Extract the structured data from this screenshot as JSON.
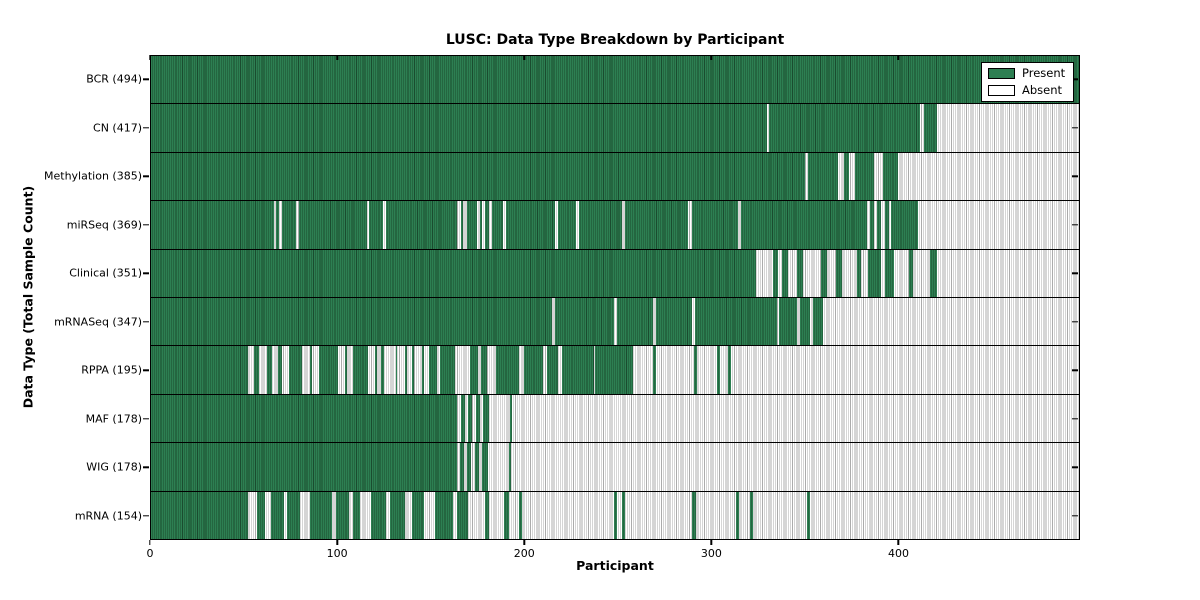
{
  "chart_data": {
    "type": "heatmap",
    "title": "LUSC: Data Type Breakdown by Participant",
    "xlabel": "Participant",
    "ylabel": "Data Type (Total Sample Count)",
    "x_ticks": [
      0,
      100,
      200,
      300,
      400
    ],
    "x_range": [
      0,
      497
    ],
    "grid": false,
    "legend_position": "upper right",
    "legend": [
      {
        "label": "Present",
        "color": "#2d7f52"
      },
      {
        "label": "Absent",
        "color": "#ffffff"
      }
    ],
    "cell_states": {
      "present": 1,
      "absent": 0
    },
    "rows": [
      {
        "label": "BCR (494)",
        "data_type": "BCR",
        "total": 494,
        "present_runs": [
          [
            0,
            497
          ]
        ]
      },
      {
        "label": "CN (417)",
        "data_type": "CN",
        "total": 417,
        "present_runs": [
          [
            0,
            330
          ],
          [
            331,
            412
          ],
          [
            414,
            421
          ]
        ]
      },
      {
        "label": "Methylation (385)",
        "data_type": "Methylation",
        "total": 385,
        "present_runs": [
          [
            0,
            350
          ],
          [
            352,
            368
          ],
          [
            371,
            374
          ],
          [
            377,
            387
          ],
          [
            392,
            400
          ]
        ]
      },
      {
        "label": "miRSeq (369)",
        "data_type": "miRSeq",
        "total": 369,
        "present_runs": [
          [
            0,
            66
          ],
          [
            67,
            68.5
          ],
          [
            70,
            77.5
          ],
          [
            79,
            115.5
          ],
          [
            117,
            124.5
          ],
          [
            126,
            164
          ],
          [
            166,
            167
          ],
          [
            169,
            174.5
          ],
          [
            176,
            177.5
          ],
          [
            179,
            181
          ],
          [
            182.5,
            188.5
          ],
          [
            190,
            216.5
          ],
          [
            218,
            227.5
          ],
          [
            229,
            252.5
          ],
          [
            254,
            287.5
          ],
          [
            289.5,
            314.5
          ],
          [
            316,
            383.5
          ],
          [
            385,
            387
          ],
          [
            389,
            391
          ],
          [
            393,
            395
          ],
          [
            396.5,
            411
          ]
        ]
      },
      {
        "label": "Clinical (351)",
        "data_type": "Clinical",
        "total": 351,
        "present_runs": [
          [
            0,
            324
          ],
          [
            333,
            336
          ],
          [
            338,
            341
          ],
          [
            346,
            349
          ],
          [
            359,
            362
          ],
          [
            367,
            370
          ],
          [
            378,
            380
          ],
          [
            384,
            391
          ],
          [
            393,
            398
          ],
          [
            406,
            408
          ],
          [
            417,
            421
          ]
        ]
      },
      {
        "label": "mRNASeq (347)",
        "data_type": "mRNASeq",
        "total": 347,
        "present_runs": [
          [
            0,
            215
          ],
          [
            216.5,
            248
          ],
          [
            249.5,
            269
          ],
          [
            270.5,
            290
          ],
          [
            291.5,
            335
          ],
          [
            336.5,
            346
          ],
          [
            347.5,
            353
          ],
          [
            354.5,
            360
          ]
        ]
      },
      {
        "label": "RPPA (195)",
        "data_type": "RPPA",
        "total": 195,
        "present_runs": [
          [
            0,
            52
          ],
          [
            55,
            58
          ],
          [
            62,
            65
          ],
          [
            68,
            70
          ],
          [
            74,
            81
          ],
          [
            85,
            86
          ],
          [
            90,
            100
          ],
          [
            104,
            105
          ],
          [
            108,
            116
          ],
          [
            120,
            121
          ],
          [
            123,
            125
          ],
          [
            131,
            132
          ],
          [
            136,
            137
          ],
          [
            140,
            141
          ],
          [
            145,
            146
          ],
          [
            149,
            153
          ],
          [
            155,
            163
          ],
          [
            171,
            175
          ],
          [
            177,
            180
          ],
          [
            185,
            197
          ],
          [
            200,
            210
          ],
          [
            212,
            218
          ],
          [
            220,
            237
          ],
          [
            238,
            258
          ],
          [
            269,
            270.5
          ],
          [
            291,
            292.5
          ],
          [
            303,
            304.5
          ],
          [
            309,
            310.5
          ]
        ]
      },
      {
        "label": "MAF (178)",
        "data_type": "MAF",
        "total": 178,
        "present_runs": [
          [
            0,
            164
          ],
          [
            166,
            168
          ],
          [
            170,
            172
          ],
          [
            174,
            176
          ],
          [
            178,
            181
          ],
          [
            192,
            193.5
          ]
        ]
      },
      {
        "label": "WIG (178)",
        "data_type": "WIG",
        "total": 178,
        "present_runs": [
          [
            0,
            164
          ],
          [
            165.5,
            167.5
          ],
          [
            169.5,
            171.5
          ],
          [
            173.5,
            175.5
          ],
          [
            177.5,
            180.5
          ],
          [
            191.5,
            193
          ]
        ]
      },
      {
        "label": "mRNA (154)",
        "data_type": "mRNA",
        "total": 154,
        "present_runs": [
          [
            0,
            52
          ],
          [
            57,
            61
          ],
          [
            64,
            71
          ],
          [
            73,
            80
          ],
          [
            85,
            97
          ],
          [
            99,
            106
          ],
          [
            108,
            112
          ],
          [
            118,
            126
          ],
          [
            128,
            136
          ],
          [
            140,
            146
          ],
          [
            152,
            162
          ],
          [
            164,
            170
          ],
          [
            179,
            181
          ],
          [
            189,
            192
          ],
          [
            197,
            198.5
          ],
          [
            248,
            249.5
          ],
          [
            252.5,
            254
          ],
          [
            290,
            292
          ],
          [
            313.5,
            315
          ],
          [
            321,
            322.5
          ],
          [
            351.5,
            353
          ]
        ]
      }
    ]
  },
  "colors": {
    "present_fill": "#2d7f52",
    "present_edge": "#1a4c2f",
    "absent_fill": "#ffffff",
    "absent_edge": "#ababab",
    "axis": "#000000"
  }
}
